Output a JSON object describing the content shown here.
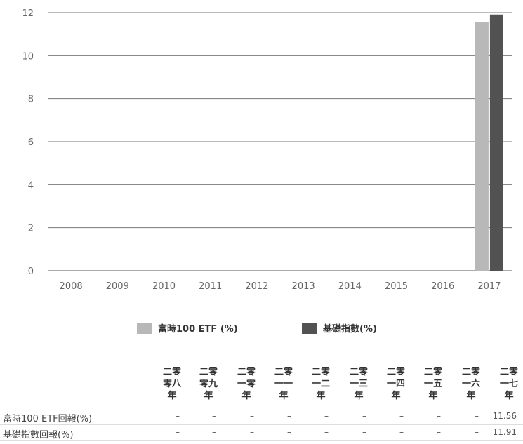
{
  "chart_data": {
    "type": "bar",
    "categories": [
      "2008",
      "2009",
      "2010",
      "2011",
      "2012",
      "2013",
      "2014",
      "2015",
      "2016",
      "2017"
    ],
    "series": [
      {
        "name": "富時100 ETF (%)",
        "values": [
          null,
          null,
          null,
          null,
          null,
          null,
          null,
          null,
          null,
          11.56
        ],
        "color": "#b8b8b8"
      },
      {
        "name": "基礎指數(%)",
        "values": [
          null,
          null,
          null,
          null,
          null,
          null,
          null,
          null,
          null,
          11.91
        ],
        "color": "#525252"
      }
    ],
    "yticks": [
      0,
      2,
      4,
      6,
      8,
      10,
      12
    ],
    "ylim": [
      0,
      12
    ],
    "grid": true,
    "legend": "bottom"
  },
  "table": {
    "headers": [
      [
        "二零",
        "零八",
        "年"
      ],
      [
        "二零",
        "零九",
        "年"
      ],
      [
        "二零",
        "一零",
        "年"
      ],
      [
        "二零",
        "一一",
        "年"
      ],
      [
        "二零",
        "一二",
        "年"
      ],
      [
        "二零",
        "一三",
        "年"
      ],
      [
        "二零",
        "一四",
        "年"
      ],
      [
        "二零",
        "一五",
        "年"
      ],
      [
        "二零",
        "一六",
        "年"
      ],
      [
        "二零",
        "一七",
        "年"
      ]
    ],
    "rows": [
      {
        "label": "富時100 ETF回報(%)",
        "values": [
          "–",
          "–",
          "–",
          "–",
          "–",
          "–",
          "–",
          "–",
          "–",
          "11.56"
        ]
      },
      {
        "label": "基礎指數回報(%)",
        "values": [
          "–",
          "–",
          "–",
          "–",
          "–",
          "–",
          "–",
          "–",
          "–",
          "11.91"
        ]
      }
    ]
  }
}
